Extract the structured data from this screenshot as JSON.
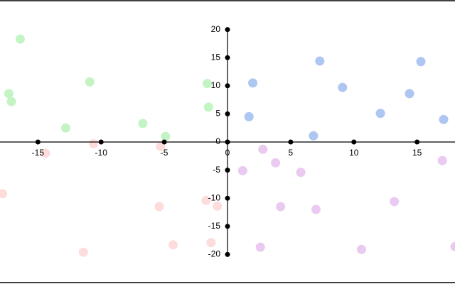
{
  "chart_data": {
    "type": "scatter",
    "xlim": [
      -18,
      18
    ],
    "ylim": [
      -25,
      25
    ],
    "xticks": [
      -15,
      -10,
      -5,
      0,
      5,
      10,
      15
    ],
    "yticks": [
      -20,
      -15,
      -10,
      -5,
      0,
      5,
      10,
      15,
      20
    ],
    "series": [
      {
        "color": "#c4f4c4",
        "x": [
          -16.4,
          -17.3,
          -17.1,
          -10.9,
          -12.8,
          -6.7,
          -4.9,
          -1.6,
          -1.5
        ],
        "values": [
          18.3,
          8.6,
          7.2,
          10.7,
          2.5,
          3.3,
          1.0,
          10.4,
          6.2
        ]
      },
      {
        "color": "#aec6f2",
        "x": [
          2.0,
          1.7,
          7.3,
          9.1,
          6.8,
          12.1,
          14.4,
          15.3,
          17.1
        ],
        "values": [
          10.5,
          4.5,
          14.4,
          9.7,
          1.1,
          5.1,
          8.6,
          14.3,
          4.0
        ]
      },
      {
        "color": "#fddcdc",
        "x": [
          -14.4,
          -10.6,
          -17.8,
          -5.3,
          -5.4,
          -11.4,
          -4.3,
          -1.7,
          -0.8,
          -1.3
        ],
        "values": [
          -2.0,
          -0.3,
          -9.2,
          -0.8,
          -11.5,
          -19.6,
          -18.3,
          -10.4,
          -11.4,
          -17.9
        ]
      },
      {
        "color": "#eacaf0",
        "x": [
          2.8,
          1.2,
          3.8,
          5.8,
          4.2,
          7.0,
          2.6,
          10.6,
          13.2,
          17.0,
          18.0
        ],
        "values": [
          -1.3,
          -5.1,
          -3.7,
          -5.4,
          -11.5,
          -12.0,
          -18.7,
          -19.1,
          -10.6,
          -3.3,
          -18.6
        ]
      }
    ]
  }
}
